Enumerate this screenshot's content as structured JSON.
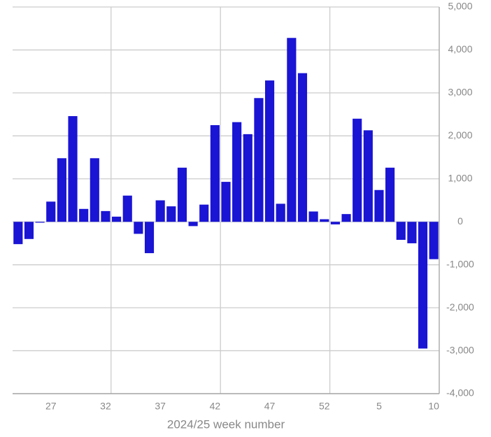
{
  "chart_data": {
    "type": "bar",
    "x_label": "2024/25 week number",
    "categories": [
      null,
      null,
      null,
      "27",
      null,
      null,
      null,
      null,
      "32",
      null,
      null,
      null,
      null,
      "37",
      null,
      null,
      null,
      null,
      "42",
      null,
      null,
      null,
      null,
      "47",
      null,
      null,
      null,
      null,
      "52",
      null,
      null,
      null,
      null,
      "5",
      null,
      null,
      null,
      null,
      "10"
    ],
    "values": [
      -520,
      -400,
      -20,
      470,
      1480,
      2460,
      300,
      1480,
      250,
      120,
      610,
      -280,
      -730,
      500,
      360,
      1260,
      -100,
      400,
      2250,
      930,
      2320,
      2040,
      2880,
      3290,
      420,
      4280,
      3460,
      240,
      60,
      -60,
      180,
      2400,
      2130,
      740,
      1260,
      -420,
      -500,
      -2950,
      -870
    ],
    "color": "#1a14d4",
    "ylim": [
      -4000,
      5000
    ],
    "yticks": [
      {
        "value": -4000,
        "label": "-4,000"
      },
      {
        "value": -3000,
        "label": "-3,000"
      },
      {
        "value": -2000,
        "label": "-2,000"
      },
      {
        "value": -1000,
        "label": "-1,000"
      },
      0,
      {
        "value": 1000,
        "label": "1,000"
      },
      {
        "value": 2000,
        "label": "2,000"
      },
      {
        "value": 3000,
        "label": "3,000"
      },
      {
        "value": 4000,
        "label": "4,000"
      },
      {
        "value": 5000,
        "label": "5,000"
      }
    ],
    "grid": true
  }
}
